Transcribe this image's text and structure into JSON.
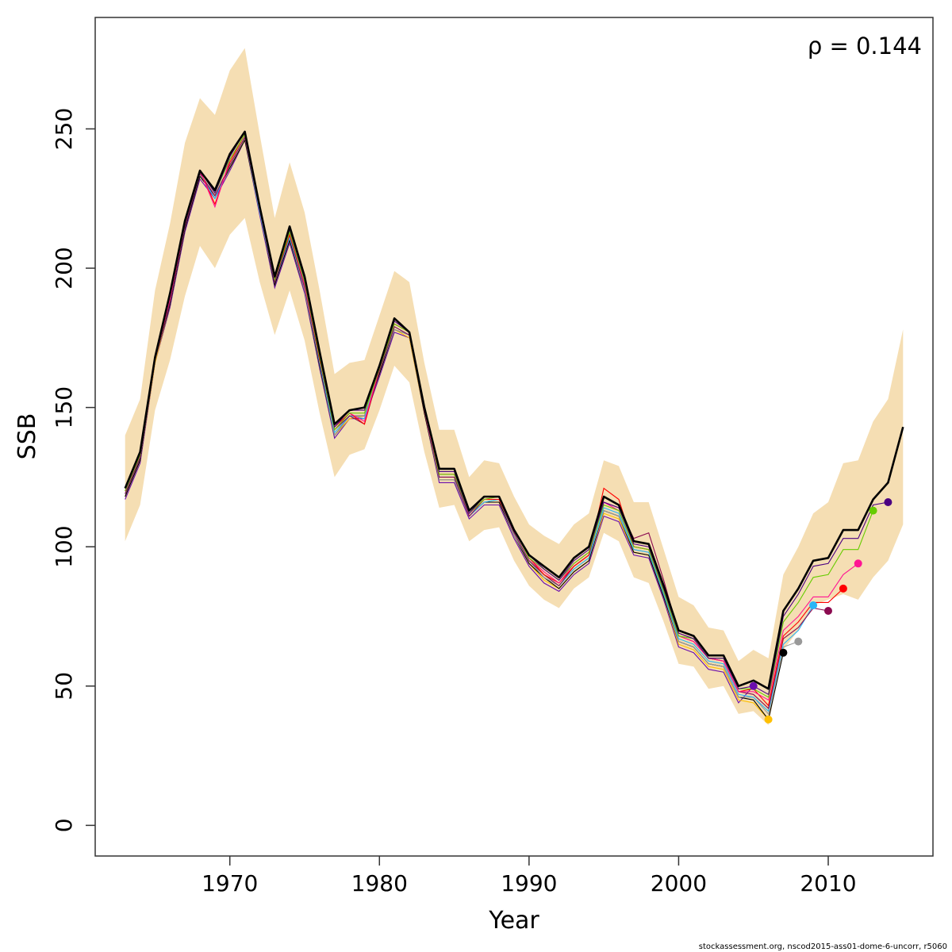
{
  "chart_data": {
    "type": "line",
    "xlabel": "Year",
    "ylabel": "SSB",
    "xlim": [
      1961,
      2017
    ],
    "ylim": [
      -11,
      290
    ],
    "xticks": [
      1970,
      1980,
      1990,
      2000,
      2010
    ],
    "yticks": [
      0,
      50,
      100,
      150,
      200,
      250
    ],
    "annotation": "ρ = 0.144",
    "footer": "stockassessment.org, nscod2015-ass01-dome-6-uncorr, r5060",
    "colors": {
      "band": "#f5deb3",
      "main": "#000000",
      "peels": [
        "#6a0dad",
        "#ffc000",
        "#000000",
        "#999999",
        "#29b6f6",
        "#8b0a50",
        "#ff0000",
        "#ff1493",
        "#66cc00",
        "#4b0082"
      ]
    },
    "years": [
      1963,
      1964,
      1965,
      1966,
      1967,
      1968,
      1969,
      1970,
      1971,
      1972,
      1973,
      1974,
      1975,
      1976,
      1977,
      1978,
      1979,
      1980,
      1981,
      1982,
      1983,
      1984,
      1985,
      1986,
      1987,
      1988,
      1989,
      1990,
      1991,
      1992,
      1993,
      1994,
      1995,
      1996,
      1997,
      1998,
      1999,
      2000,
      2001,
      2002,
      2003,
      2004,
      2005,
      2006,
      2007,
      2008,
      2009,
      2010,
      2011,
      2012,
      2013,
      2014,
      2015
    ],
    "ssb": [
      121,
      134,
      168,
      191,
      217,
      235,
      228,
      241,
      249,
      222,
      197,
      215,
      197,
      170,
      144,
      149,
      150,
      165,
      182,
      177,
      150,
      128,
      128,
      113,
      118,
      118,
      106,
      97,
      93,
      89,
      96,
      100,
      118,
      115,
      102,
      101,
      86,
      70,
      68,
      61,
      61,
      50,
      52,
      49,
      77,
      85,
      95,
      96,
      106,
      106,
      117,
      123,
      143
    ],
    "upper": [
      140,
      153,
      192,
      216,
      245,
      261,
      255,
      271,
      279,
      248,
      218,
      238,
      220,
      192,
      162,
      166,
      167,
      183,
      199,
      195,
      166,
      142,
      142,
      125,
      131,
      130,
      118,
      108,
      104,
      101,
      108,
      112,
      131,
      129,
      116,
      116,
      99,
      82,
      79,
      71,
      70,
      59,
      63,
      60,
      90,
      100,
      112,
      116,
      130,
      131,
      145,
      153,
      178
    ],
    "lower": [
      102,
      115,
      149,
      167,
      190,
      208,
      200,
      212,
      218,
      195,
      176,
      192,
      174,
      148,
      125,
      133,
      135,
      149,
      165,
      159,
      134,
      114,
      115,
      102,
      106,
      107,
      95,
      86,
      81,
      78,
      85,
      89,
      105,
      102,
      89,
      87,
      73,
      58,
      57,
      49,
      50,
      40,
      41,
      36,
      63,
      70,
      79,
      81,
      83,
      81,
      89,
      95,
      108
    ],
    "peels": [
      {
        "end": 2005,
        "color": "#6a0dad",
        "values": [
          117,
          130,
          166,
          186,
          213,
          232,
          225,
          235,
          246,
          219,
          193,
          209,
          191,
          164,
          139,
          146,
          146,
          161,
          177,
          175,
          148,
          123,
          123,
          110,
          115,
          115,
          103,
          93,
          87,
          84,
          90,
          94,
          111,
          109,
          97,
          96,
          81,
          64,
          62,
          56,
          55,
          44,
          50
        ]
      },
      {
        "end": 2006,
        "color": "#ffc000",
        "values": [
          118,
          131,
          166,
          187,
          214,
          233,
          226,
          236,
          246,
          220,
          194,
          210,
          192,
          165,
          140,
          146,
          147,
          162,
          178,
          175,
          148,
          124,
          124,
          111,
          116,
          116,
          104,
          94,
          88,
          85,
          91,
          95,
          112,
          110,
          98,
          97,
          82,
          65,
          63,
          57,
          56,
          45,
          44,
          38
        ]
      },
      {
        "end": 2007,
        "color": "#000000",
        "values": [
          118,
          131,
          167,
          187,
          214,
          233,
          226,
          236,
          246,
          220,
          194,
          210,
          192,
          165,
          140,
          147,
          147,
          162,
          178,
          176,
          148,
          124,
          124,
          111,
          116,
          116,
          104,
          94,
          89,
          85,
          91,
          95,
          113,
          111,
          98,
          97,
          82,
          66,
          64,
          58,
          57,
          46,
          45,
          38,
          62
        ]
      },
      {
        "end": 2008,
        "color": "#999999",
        "values": [
          119,
          132,
          167,
          188,
          215,
          234,
          226,
          237,
          247,
          220,
          195,
          211,
          192,
          166,
          140,
          147,
          147,
          163,
          178,
          176,
          149,
          124,
          124,
          111,
          116,
          117,
          104,
          95,
          89,
          86,
          92,
          96,
          113,
          111,
          99,
          98,
          83,
          66,
          64,
          58,
          57,
          46,
          46,
          40,
          64,
          66
        ]
      },
      {
        "end": 2009,
        "color": "#29b6f6",
        "values": [
          119,
          132,
          167,
          188,
          215,
          234,
          225,
          237,
          247,
          220,
          195,
          211,
          193,
          166,
          141,
          147,
          146,
          163,
          179,
          176,
          149,
          125,
          125,
          111,
          116,
          117,
          105,
          95,
          90,
          86,
          92,
          96,
          114,
          112,
          99,
          98,
          83,
          67,
          65,
          59,
          58,
          47,
          46,
          41,
          65,
          70,
          79
        ]
      },
      {
        "end": 2010,
        "color": "#8b0a50",
        "values": [
          119,
          132,
          167,
          188,
          215,
          234,
          226,
          237,
          247,
          221,
          195,
          212,
          193,
          167,
          142,
          147,
          144,
          163,
          179,
          176,
          149,
          125,
          125,
          111,
          117,
          117,
          105,
          95,
          90,
          86,
          93,
          97,
          116,
          114,
          103,
          105,
          88,
          69,
          67,
          60,
          59,
          48,
          47,
          42,
          67,
          71,
          78,
          77
        ]
      },
      {
        "end": 2011,
        "color": "#ff0000",
        "values": [
          120,
          133,
          168,
          189,
          216,
          235,
          223,
          238,
          248,
          221,
          196,
          212,
          194,
          167,
          143,
          148,
          144,
          164,
          180,
          177,
          149,
          126,
          126,
          112,
          117,
          117,
          106,
          96,
          90,
          87,
          93,
          97,
          121,
          117,
          100,
          99,
          84,
          68,
          66,
          60,
          59,
          48,
          49,
          43,
          68,
          73,
          80,
          80,
          85
        ]
      },
      {
        "end": 2012,
        "color": "#ff1493",
        "values": [
          120,
          133,
          168,
          189,
          216,
          235,
          222,
          239,
          248,
          221,
          196,
          213,
          194,
          168,
          142,
          148,
          145,
          164,
          180,
          177,
          149,
          126,
          126,
          112,
          117,
          118,
          106,
          96,
          91,
          87,
          94,
          98,
          116,
          113,
          100,
          99,
          84,
          68,
          66,
          60,
          59,
          48,
          48,
          45,
          70,
          75,
          82,
          82,
          90,
          94
        ]
      },
      {
        "end": 2013,
        "color": "#66cc00",
        "values": [
          120,
          133,
          168,
          190,
          216,
          235,
          227,
          239,
          248,
          222,
          196,
          213,
          195,
          168,
          142,
          148,
          148,
          164,
          180,
          177,
          150,
          126,
          126,
          112,
          117,
          118,
          106,
          96,
          92,
          88,
          94,
          98,
          115,
          113,
          100,
          99,
          84,
          68,
          67,
          60,
          60,
          49,
          49,
          46,
          73,
          80,
          89,
          90,
          99,
          99,
          113
        ]
      },
      {
        "end": 2014,
        "color": "#4b0082",
        "values": [
          121,
          134,
          168,
          190,
          216,
          235,
          227,
          240,
          249,
          222,
          197,
          214,
          196,
          169,
          143,
          149,
          149,
          165,
          181,
          177,
          150,
          127,
          127,
          112,
          118,
          118,
          106,
          97,
          92,
          88,
          95,
          99,
          116,
          114,
          101,
          100,
          85,
          69,
          67,
          60,
          60,
          49,
          50,
          47,
          75,
          83,
          93,
          94,
          103,
          103,
          115,
          116
        ]
      }
    ]
  }
}
